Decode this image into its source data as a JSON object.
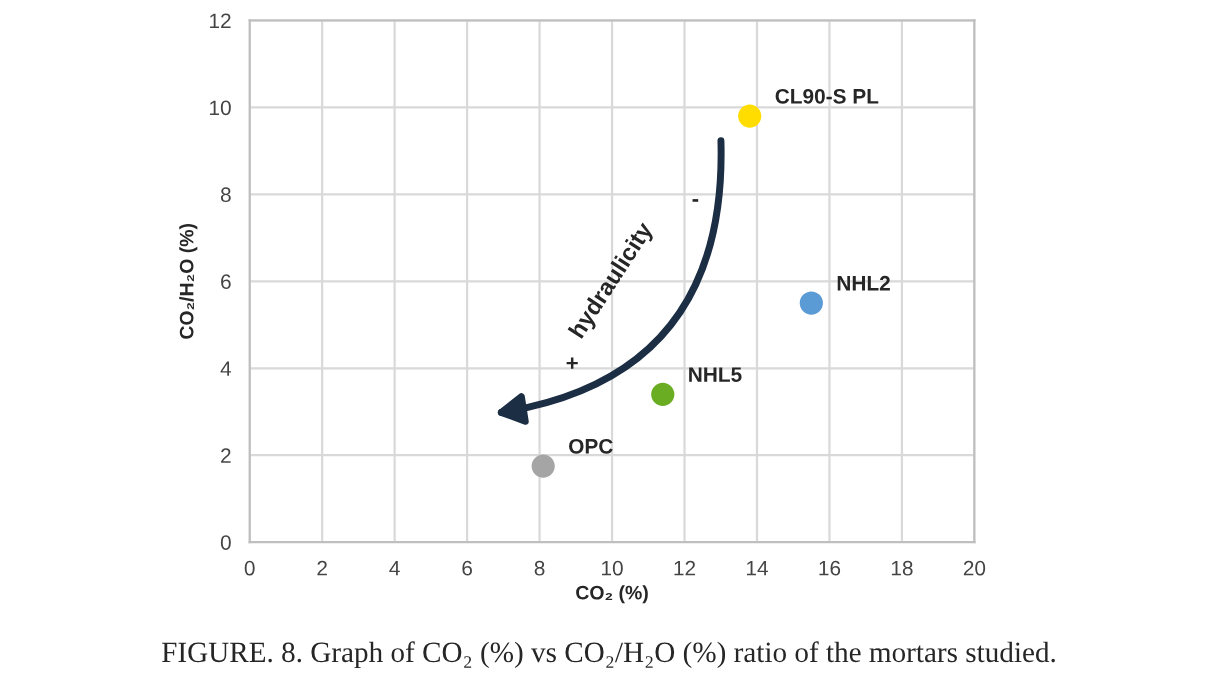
{
  "chart_data": {
    "type": "scatter",
    "xlabel": "CO₂ (%)",
    "ylabel": "CO₂/H₂O (%)",
    "xlim": [
      0,
      20
    ],
    "ylim": [
      0,
      12
    ],
    "xticks": [
      0,
      2,
      4,
      6,
      8,
      10,
      12,
      14,
      16,
      18,
      20
    ],
    "yticks": [
      0,
      2,
      4,
      6,
      8,
      10,
      12
    ],
    "grid": true,
    "legend": false,
    "marker": "circle",
    "series": [
      {
        "name": "CL90-S PL",
        "color": "#ffdd00",
        "x": [
          13.8
        ],
        "values": [
          9.8
        ]
      },
      {
        "name": "NHL2",
        "color": "#5b9bd5",
        "x": [
          15.5
        ],
        "values": [
          5.5
        ]
      },
      {
        "name": "NHL5",
        "color": "#6aad22",
        "x": [
          11.4
        ],
        "values": [
          3.4
        ]
      },
      {
        "name": "OPC",
        "color": "#a5a5a5",
        "x": [
          8.1
        ],
        "values": [
          1.75
        ]
      }
    ],
    "annotations": [
      "hydraulicity",
      "+",
      "-",
      "FIGURE. 8. Graph of CO₂ (%) vs CO₂/H₂O (%) ratio of the mortars studied."
    ]
  }
}
